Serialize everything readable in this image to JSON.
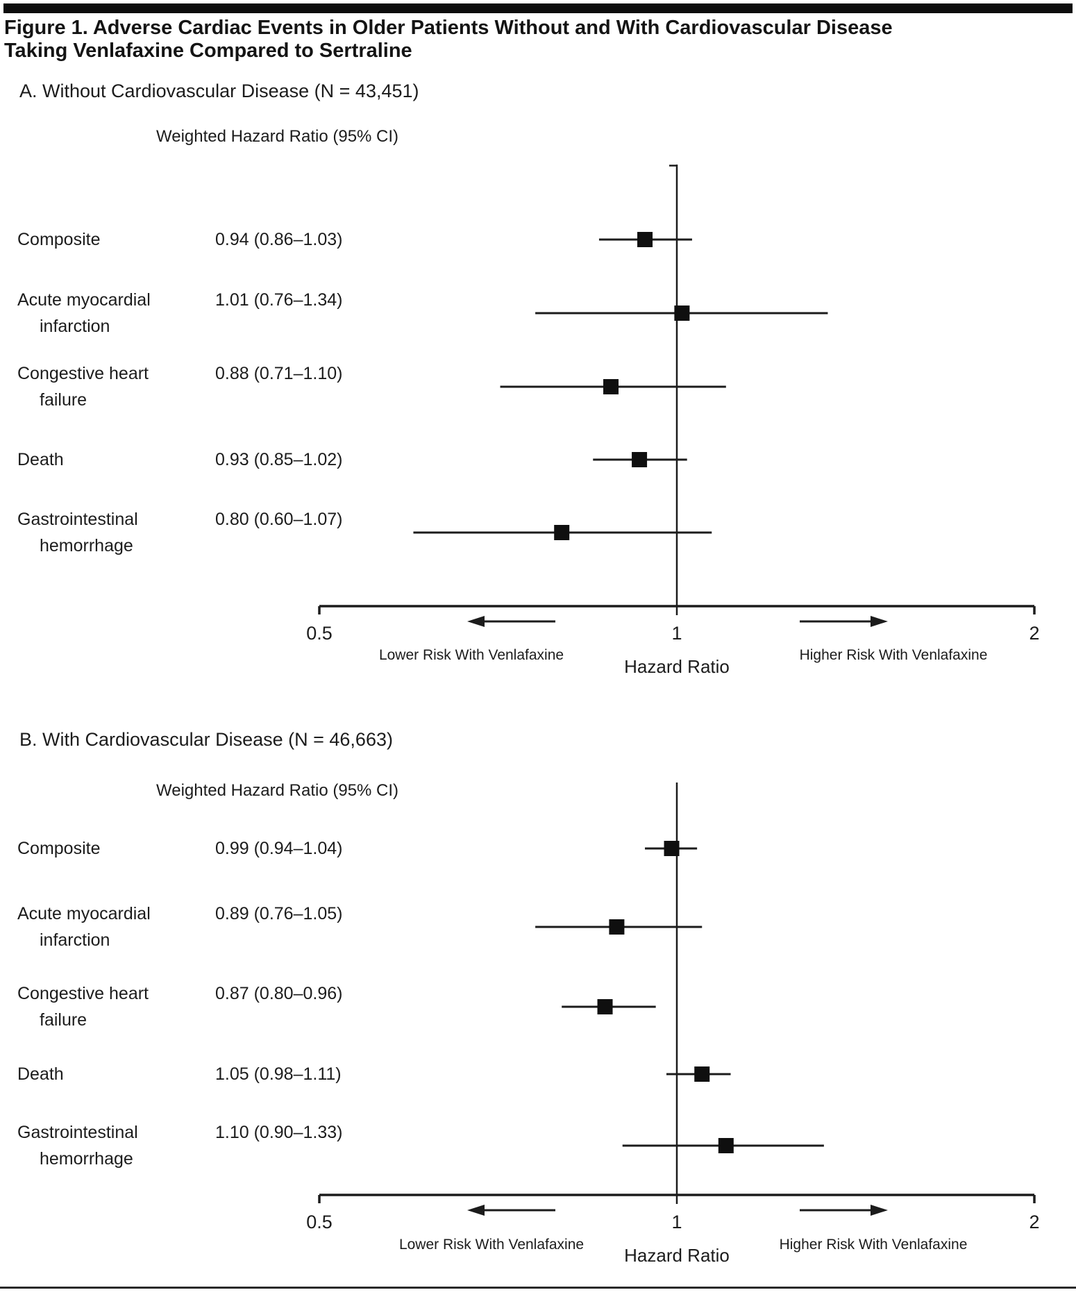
{
  "figure": {
    "title": "Figure 1. Adverse Cardiac Events in Older Patients Without and With Cardiovascular Disease\nTaking Venlafaxine Compared to Sertraline",
    "text_color": "#1c1c1c",
    "rule_color": "#0d0d0d"
  },
  "chart_data": [
    {
      "type": "forest",
      "panel_label": "A. Without Cardiovascular Disease (N = 43,451)",
      "column_header": "Weighted Hazard Ratio (95% CI)",
      "xlabel": "Hazard Ratio",
      "x_scale": "log",
      "x_range": [
        0.5,
        2
      ],
      "x_ticks": [
        "0.5",
        "1",
        "2"
      ],
      "reference_line": 1,
      "arrow_left_label": "Lower Risk With Venlafaxine",
      "arrow_right_label": "Higher Risk With Venlafaxine",
      "rows": [
        {
          "label": "Composite",
          "ci_text": "0.94 (0.86–1.03)",
          "hr": 0.94,
          "lo": 0.86,
          "hi": 1.03
        },
        {
          "label": "Acute myocardial\ninfarction",
          "ci_text": "1.01 (0.76–1.34)",
          "hr": 1.01,
          "lo": 0.76,
          "hi": 1.34
        },
        {
          "label": "Congestive heart\nfailure",
          "ci_text": "0.88 (0.71–1.10)",
          "hr": 0.88,
          "lo": 0.71,
          "hi": 1.1
        },
        {
          "label": "Death",
          "ci_text": "0.93 (0.85–1.02)",
          "hr": 0.93,
          "lo": 0.85,
          "hi": 1.02
        },
        {
          "label": "Gastrointestinal\nhemorrhage",
          "ci_text": "0.80 (0.60–1.07)",
          "hr": 0.8,
          "lo": 0.6,
          "hi": 1.07
        }
      ]
    },
    {
      "type": "forest",
      "panel_label": "B. With Cardiovascular Disease (N = 46,663)",
      "column_header": "Weighted Hazard Ratio (95% CI)",
      "xlabel": "Hazard Ratio",
      "x_scale": "log",
      "x_range": [
        0.5,
        2
      ],
      "x_ticks": [
        "0.5",
        "1",
        "2"
      ],
      "reference_line": 1,
      "arrow_left_label": "Lower Risk With Venlafaxine",
      "arrow_right_label": "Higher Risk With Venlafaxine",
      "rows": [
        {
          "label": "Composite",
          "ci_text": "0.99 (0.94–1.04)",
          "hr": 0.99,
          "lo": 0.94,
          "hi": 1.04
        },
        {
          "label": "Acute myocardial\ninfarction",
          "ci_text": "0.89 (0.76–1.05)",
          "hr": 0.89,
          "lo": 0.76,
          "hi": 1.05
        },
        {
          "label": "Congestive heart\nfailure",
          "ci_text": "0.87 (0.80–0.96)",
          "hr": 0.87,
          "lo": 0.8,
          "hi": 0.96
        },
        {
          "label": "Death",
          "ci_text": "1.05 (0.98–1.11)",
          "hr": 1.05,
          "lo": 0.98,
          "hi": 1.11
        },
        {
          "label": "Gastrointestinal\nhemorrhage",
          "ci_text": "1.10 (0.90–1.33)",
          "hr": 1.1,
          "lo": 0.9,
          "hi": 1.33
        }
      ]
    }
  ]
}
